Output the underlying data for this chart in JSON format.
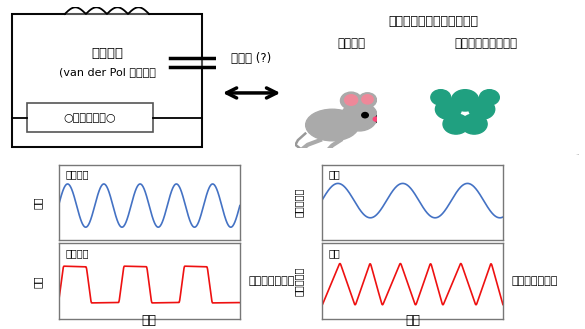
{
  "title_left": "電気回路",
  "title_left2": "(van der Pol モデル）",
  "nonlinear_label": "○非線形素子○",
  "arrow_label": "共通性 (?)",
  "title_right": "体内時計を記述するモデル",
  "right_mouse": "マウス型",
  "right_cyano": "シアノバクテリア型",
  "label_ul": "非線形小",
  "label_ll": "非線形大",
  "label_ur": "低温",
  "label_lr": "高温",
  "annotation_left": "波形がひずむ！",
  "annotation_right": "波形がひずむ！",
  "xlabel_left": "時間",
  "xlabel_right": "時間",
  "ylabel_ul": "電圧",
  "ylabel_ll": "電圧",
  "ylabel_ur": "遺伝子活性",
  "ylabel_lr": "遺伝子活性",
  "color_blue": "#4472C4",
  "color_red": "#EE1111",
  "bg_color": "#FFFFFF",
  "box_edge": "#888888"
}
